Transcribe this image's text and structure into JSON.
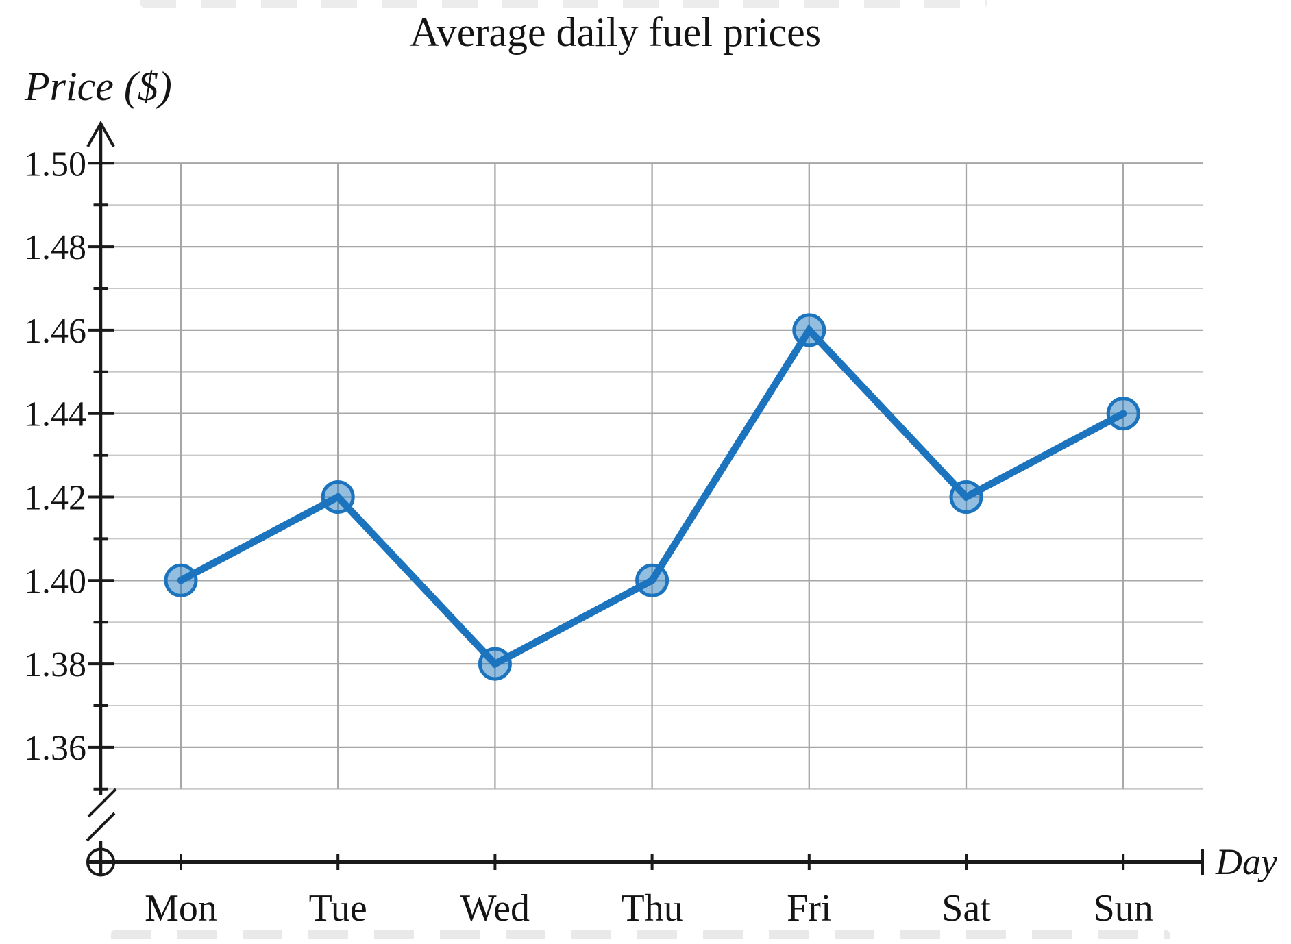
{
  "chart_data": {
    "type": "line",
    "title": "Average daily fuel prices",
    "xlabel": "Day",
    "ylabel": "Price ($)",
    "categories": [
      "Mon",
      "Tue",
      "Wed",
      "Thu",
      "Fri",
      "Sat",
      "Sun"
    ],
    "values": [
      1.4,
      1.42,
      1.38,
      1.4,
      1.46,
      1.42,
      1.44
    ],
    "y_tick_labels": [
      "1.50",
      "1.48",
      "1.46",
      "1.44",
      "1.42",
      "1.40",
      "1.38",
      "1.36"
    ],
    "ylim": [
      1.35,
      1.5
    ],
    "y_label_step": 0.02,
    "y_grid_step": 0.01,
    "axis_break": true,
    "grid": true,
    "legend_position": "none",
    "series_color": "#1b74bd",
    "marker_fill_color": "#8db9df",
    "grid_major_color": "#a6a6a6",
    "grid_minor_color": "#c9c9c9",
    "axis_color": "#1a1a1a"
  }
}
